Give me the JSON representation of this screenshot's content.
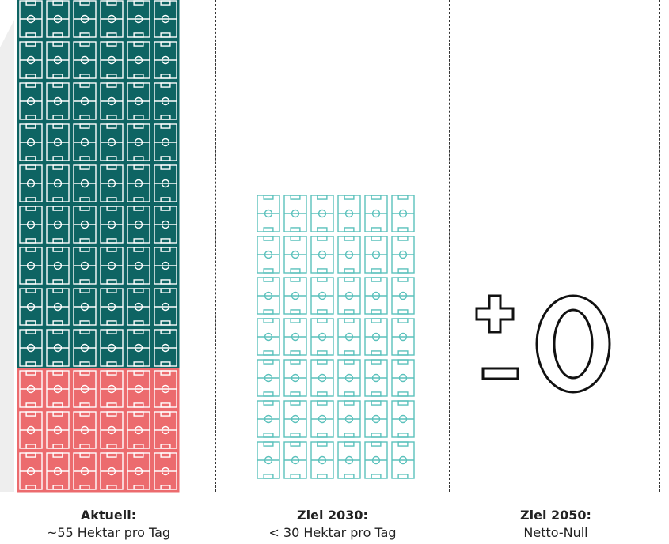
{
  "chart_data": {
    "type": "pictogram",
    "unit_icon": "football-pitch-icon",
    "columns": [
      {
        "label_head": "Aktuell:",
        "label_sub": "~55 Hektar pro Tag",
        "icon_count": 72,
        "segments": [
          {
            "count": 54,
            "color": "#0e6463"
          },
          {
            "count": 18,
            "color": "#ec6b6e"
          }
        ]
      },
      {
        "label_head": "Ziel 2030:",
        "label_sub": "< 30 Hektar pro Tag",
        "icon_count": 42,
        "segments": [
          {
            "count": 42,
            "color": "#5bc1bc",
            "outline": true
          }
        ]
      },
      {
        "label_head": "Ziel 2050:",
        "label_sub": "Netto-Null",
        "symbol": "±0"
      }
    ]
  }
}
